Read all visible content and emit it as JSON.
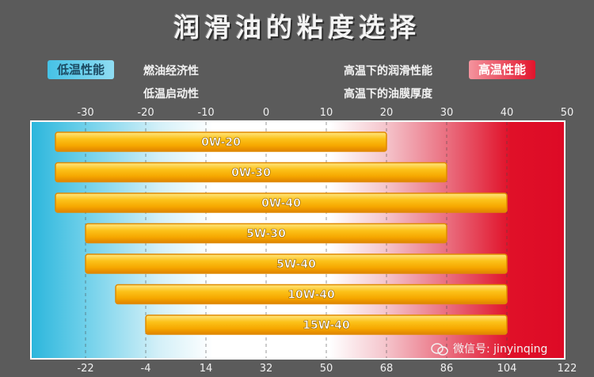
{
  "title": "润滑油的粘度选择",
  "legend": {
    "low_label": "低温性能",
    "high_label": "高温性能",
    "low_items": [
      "燃油经济性",
      "低温启动性"
    ],
    "high_items": [
      "高温下的润滑性能",
      "高温下的油膜厚度"
    ]
  },
  "watermark": "微信号: jinyinqing",
  "chart_data": {
    "type": "bar",
    "orientation": "horizontal-range",
    "categories": [
      "0W-20",
      "0W-30",
      "0W-40",
      "5W-30",
      "5W-40",
      "10W-40",
      "15W-40"
    ],
    "ranges": [
      [
        -35,
        20
      ],
      [
        -35,
        30
      ],
      [
        -35,
        40
      ],
      [
        -30,
        30
      ],
      [
        -30,
        40
      ],
      [
        -25,
        40
      ],
      [
        -20,
        40
      ]
    ],
    "top_axis": {
      "unit": "°C",
      "ticks": [
        -30,
        -20,
        -10,
        0,
        10,
        20,
        30,
        40,
        50
      ],
      "range": [
        -35,
        50
      ]
    },
    "bottom_axis": {
      "unit": "°F",
      "ticks": [
        -22,
        -4,
        14,
        32,
        50,
        68,
        86,
        104,
        122
      ]
    },
    "grid": "vertical dashed",
    "colors": {
      "cold": "#2cb6dc",
      "hot": "#dd0a26",
      "bar": "#f8b800",
      "bar_edge": "#e08a00"
    }
  }
}
